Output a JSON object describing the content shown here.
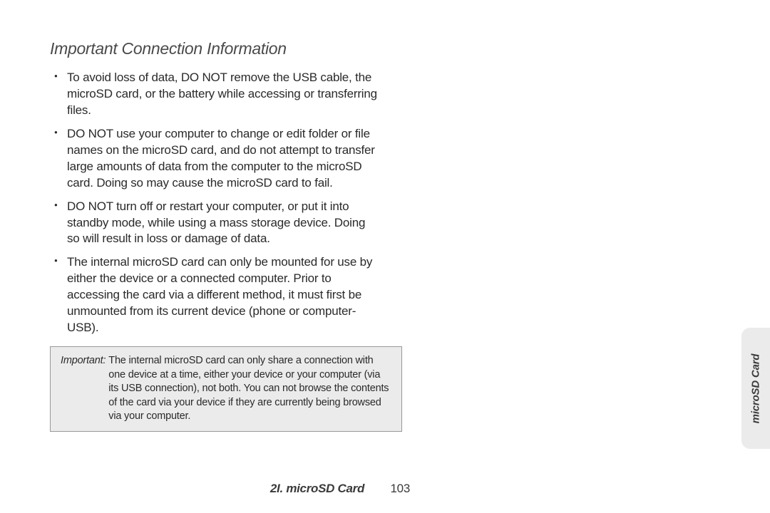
{
  "heading": "Important Connection Information",
  "bullets": [
    "To avoid loss of data, DO NOT remove the USB cable, the microSD card, or the battery while accessing or transferring files.",
    "DO NOT use your computer to change or edit folder or file names on the microSD card, and do not attempt to transfer large amounts of data from the computer to the microSD card. Doing so may cause the microSD card to fail.",
    "DO NOT turn off or restart your computer, or put it into standby mode, while using a mass storage device. Doing so will result in loss or damage of data.",
    "The internal microSD card can only be mounted for use by either the device or a connected computer. Prior to accessing the card via a different method, it must first be unmounted from its current device (phone or computer-USB)."
  ],
  "note": {
    "label": "Important:",
    "text": "The internal microSD card can only share a connection with one device at a time, either your device or your computer (via its USB connection), not both. You can not browse the contents of the card via your device if they are currently being browsed via your computer."
  },
  "sideTab": "microSD Card",
  "footer": {
    "section": "2I. microSD Card",
    "page": "103"
  },
  "colors": {
    "background": "#ffffff",
    "text": "#2a2a2a",
    "noteBg": "#ebebeb",
    "noteBorder": "#999999",
    "tabBg": "#ebebeb"
  },
  "typography": {
    "heading_fontsize": 23,
    "body_fontsize": 17,
    "note_fontsize": 14.5,
    "footer_fontsize": 17,
    "tab_fontsize": 15
  }
}
